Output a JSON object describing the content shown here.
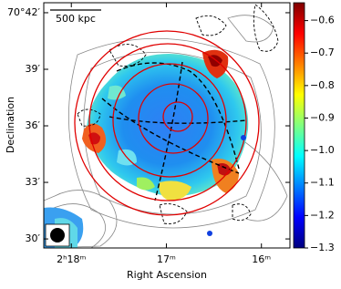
{
  "chart_data": {
    "type": "image",
    "xlabel": "Right Ascension",
    "ylabel": "Declination",
    "xlim": [
      18.29,
      15.7
    ],
    "xticks": [
      {
        "value": 18,
        "label": "2ʰ18ᵐ"
      },
      {
        "value": 17,
        "label": "17ᵐ"
      },
      {
        "value": 16,
        "label": "16ᵐ"
      }
    ],
    "ylim": [
      29.52,
      42.53
    ],
    "yticks": [
      {
        "value": 30,
        "label": "30′"
      },
      {
        "value": 33,
        "label": "33′"
      },
      {
        "value": 36,
        "label": "36′"
      },
      {
        "value": 39,
        "label": "39′"
      },
      {
        "value": 42,
        "label": "70°42′"
      }
    ],
    "colorbar": {
      "colormap": "jet",
      "lim": [
        -1.3,
        -0.545
      ],
      "ticks": [
        {
          "value": -1.3,
          "label": "−1.3"
        },
        {
          "value": -1.2,
          "label": "−1.2"
        },
        {
          "value": -1.1,
          "label": "−1.1"
        },
        {
          "value": -1.0,
          "label": "−1.0"
        },
        {
          "value": -0.9,
          "label": "−0.9"
        },
        {
          "value": -0.8,
          "label": "−0.8"
        },
        {
          "value": -0.7,
          "label": "−0.7"
        },
        {
          "value": -0.6,
          "label": "−0.6"
        }
      ]
    },
    "scale_bar_label": "500 kpc"
  }
}
